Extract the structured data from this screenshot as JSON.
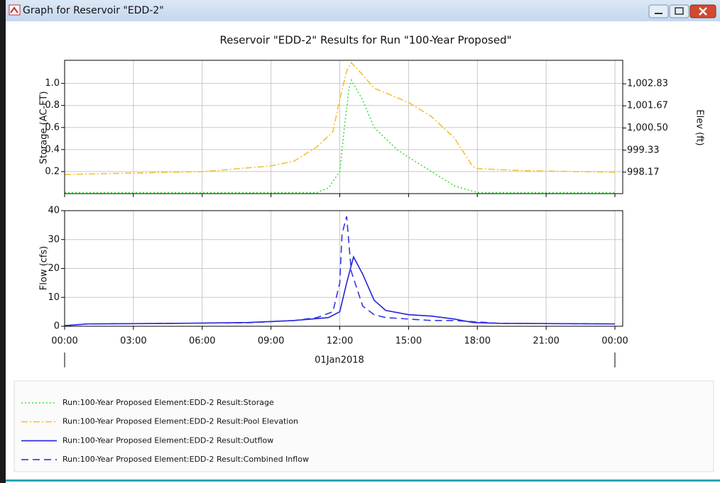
{
  "window": {
    "title": "Graph for Reservoir \"EDD-2\""
  },
  "chart_data": [
    {
      "type": "line",
      "title": "Reservoir \"EDD-2\" Results for Run \"100-Year Proposed\"",
      "ylabel": "Storage (AC-FT)",
      "y2label": "Elev (ft)",
      "xlim": [
        0,
        24.34
      ],
      "xticks": [
        0,
        3,
        6,
        9,
        12,
        15,
        18,
        21,
        24
      ],
      "ylim": [
        0,
        1.21
      ],
      "yticks": [
        0.2,
        0.4,
        0.6,
        0.8,
        {
          "value": 1.0,
          "label": "1.0"
        }
      ],
      "y2lim": [
        997.04,
        1004.07
      ],
      "y2ticks": [
        998.17,
        999.33,
        {
          "value": 1000.5,
          "label": "1,000.50"
        },
        {
          "value": 1001.67,
          "label": "1,001.67"
        },
        {
          "value": 1002.83,
          "label": "1,002.83"
        }
      ],
      "grid": true,
      "series": [
        {
          "name": "Run:100-Year Proposed Element:EDD-2 Result:Storage",
          "color": "#3fe03f",
          "style": "dotted",
          "axis": "y",
          "x": [
            0,
            11,
            11.5,
            12,
            12.2,
            12.4,
            12.5,
            13,
            13.5,
            14.5,
            15,
            16,
            17,
            18,
            24
          ],
          "values": [
            0.01,
            0.01,
            0.05,
            0.2,
            0.6,
            0.95,
            1.03,
            0.85,
            0.6,
            0.4,
            0.33,
            0.2,
            0.07,
            0.01,
            0.01
          ]
        },
        {
          "name": "Run:100-Year Proposed Element:EDD-2 Result:Pool Elevation",
          "color": "#f2c23a",
          "style": "dashdot",
          "axis": "y2",
          "x": [
            0,
            6,
            9,
            10,
            11,
            11.7,
            12,
            12.3,
            12.5,
            13,
            13.5,
            15,
            16,
            17,
            17.8,
            18,
            20,
            24
          ],
          "values": [
            998.05,
            998.2,
            998.5,
            998.75,
            999.5,
            1000.3,
            1002.0,
            1003.5,
            1003.95,
            1003.3,
            1002.6,
            1001.85,
            1001.1,
            999.97,
            998.47,
            998.36,
            998.25,
            998.17
          ]
        }
      ]
    },
    {
      "type": "line",
      "ylabel": "Flow (cfs)",
      "xlabel": "01Jan2018",
      "xlim": [
        0,
        24.34
      ],
      "xticks": [
        {
          "value": 0,
          "label": "00:00"
        },
        {
          "value": 3,
          "label": "03:00"
        },
        {
          "value": 6,
          "label": "06:00"
        },
        {
          "value": 9,
          "label": "09:00"
        },
        {
          "value": 12,
          "label": "12:00"
        },
        {
          "value": 15,
          "label": "15:00"
        },
        {
          "value": 18,
          "label": "18:00"
        },
        {
          "value": 21,
          "label": "21:00"
        },
        {
          "value": 24,
          "label": "00:00"
        }
      ],
      "ylim": [
        0,
        40
      ],
      "yticks": [
        0,
        10,
        20,
        30,
        40
      ],
      "grid": true,
      "series": [
        {
          "name": "Run:100-Year Proposed Element:EDD-2 Result:Outflow",
          "color": "#2222dd",
          "style": "solid",
          "x": [
            0,
            1,
            5,
            8,
            10,
            11.5,
            12,
            12.3,
            12.6,
            13,
            13.5,
            14,
            15,
            16,
            17,
            17.8,
            19,
            24
          ],
          "values": [
            0.2,
            0.8,
            1,
            1.3,
            2,
            3,
            5,
            15,
            24,
            18,
            9,
            5.5,
            4,
            3.5,
            2.5,
            1.3,
            1,
            0.8
          ]
        },
        {
          "name": "Run:100-Year Proposed Element:EDD-2 Result:Combined Inflow",
          "color": "#3434e6",
          "style": "dashed",
          "x": [
            0,
            1,
            8,
            10,
            11,
            11.7,
            12,
            12.1,
            12.3,
            12.5,
            13,
            13.5,
            14,
            15,
            16,
            17,
            18,
            19,
            24
          ],
          "values": [
            0.2,
            0.8,
            1.2,
            2,
            3,
            5,
            15,
            32,
            38,
            19,
            7,
            4,
            3,
            2.5,
            2,
            2,
            1.5,
            1,
            0.8
          ]
        }
      ]
    }
  ]
}
